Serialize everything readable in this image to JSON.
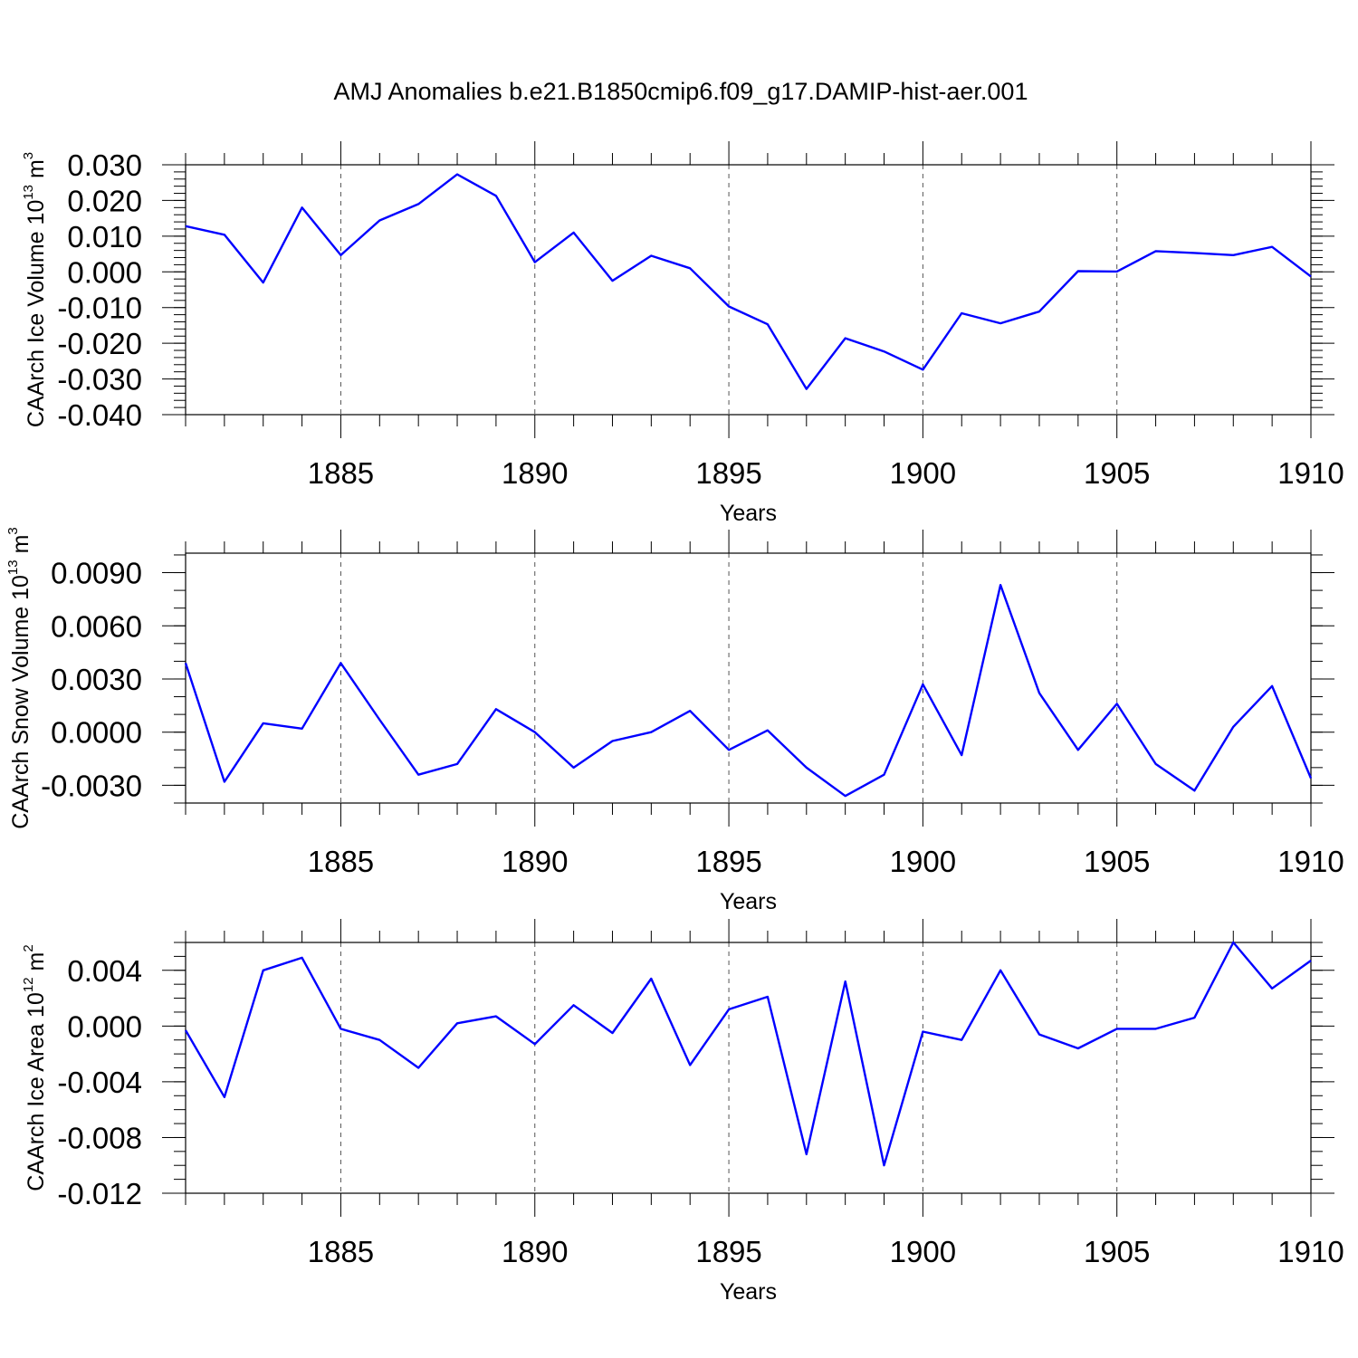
{
  "figure": {
    "title": "AMJ Anomalies b.e21.B1850cmip6.f09_g17.DAMIP-hist-aer.001"
  },
  "colors": {
    "series": "#0000ff",
    "axis": "#000000",
    "grid": "#555555"
  },
  "chart_data": [
    {
      "type": "line",
      "ylabel": "CAArch Ice Volume 10",
      "ylabel_exp": "13",
      "ylabel_unit": " m",
      "ylabel_unit_exp": "3",
      "xlabel": "Years",
      "xlim": [
        1881,
        1910
      ],
      "ylim": [
        -0.04,
        0.03
      ],
      "xticks": [
        1885,
        1890,
        1895,
        1900,
        1905,
        1910
      ],
      "yticks": [
        -0.04,
        -0.03,
        -0.02,
        -0.01,
        0.0,
        0.01,
        0.02,
        0.03
      ],
      "ytick_labels": [
        "-0.040",
        "-0.030",
        "-0.020",
        "-0.010",
        "0.000",
        "0.010",
        "0.020",
        "0.030"
      ],
      "y_minor_step": 0.002,
      "grid": "vertical dashed at major x ticks",
      "x": [
        1881,
        1882,
        1883,
        1884,
        1885,
        1886,
        1887,
        1888,
        1889,
        1890,
        1891,
        1892,
        1893,
        1894,
        1895,
        1896,
        1897,
        1898,
        1899,
        1900,
        1901,
        1902,
        1903,
        1904,
        1905,
        1906,
        1907,
        1908,
        1909,
        1910
      ],
      "series": [
        {
          "values": [
            0.0128,
            0.0104,
            -0.003,
            0.018,
            0.0047,
            0.0144,
            0.019,
            0.0273,
            0.0213,
            0.0027,
            0.011,
            -0.0025,
            0.0045,
            0.001,
            -0.0097,
            -0.0147,
            -0.0328,
            -0.0186,
            -0.0223,
            -0.0274,
            -0.0116,
            -0.0144,
            -0.0111,
            0.0002,
            0.0001,
            0.0058,
            0.0053,
            0.0047,
            0.007,
            -0.0013
          ]
        }
      ]
    },
    {
      "type": "line",
      "ylabel": "CAArch Snow Volume 10",
      "ylabel_exp": "13",
      "ylabel_unit": " m",
      "ylabel_unit_exp": "3",
      "xlabel": "Years",
      "xlim": [
        1881,
        1910
      ],
      "ylim": [
        -0.004,
        0.0101
      ],
      "xticks": [
        1885,
        1890,
        1895,
        1900,
        1905,
        1910
      ],
      "yticks": [
        -0.003,
        0.0,
        0.003,
        0.006,
        0.009
      ],
      "ytick_labels": [
        "-0.0030",
        "0.0000",
        "0.0030",
        "0.0060",
        "0.0090"
      ],
      "y_minor_step": 0.001,
      "grid": "vertical dashed at major x ticks",
      "x": [
        1881,
        1882,
        1883,
        1884,
        1885,
        1886,
        1887,
        1888,
        1889,
        1890,
        1891,
        1892,
        1893,
        1894,
        1895,
        1896,
        1897,
        1898,
        1899,
        1900,
        1901,
        1902,
        1903,
        1904,
        1905,
        1906,
        1907,
        1908,
        1909,
        1910
      ],
      "series": [
        {
          "values": [
            0.0039,
            -0.0028,
            0.0005,
            0.0002,
            0.0039,
            0.0007,
            -0.0024,
            -0.0018,
            0.0013,
            0.0,
            -0.002,
            -0.0005,
            0.0,
            0.0012,
            -0.001,
            0.0001,
            -0.002,
            -0.0036,
            -0.0024,
            0.0027,
            -0.0013,
            0.0083,
            0.0022,
            -0.001,
            0.0016,
            -0.0018,
            -0.0033,
            0.0003,
            0.0026,
            -0.0026
          ]
        }
      ]
    },
    {
      "type": "line",
      "ylabel": "CAArch Ice Area 10",
      "ylabel_exp": "12",
      "ylabel_unit": " m",
      "ylabel_unit_exp": "2",
      "xlabel": "Years",
      "xlim": [
        1881,
        1910
      ],
      "ylim": [
        -0.012,
        0.006
      ],
      "xticks": [
        1885,
        1890,
        1895,
        1900,
        1905,
        1910
      ],
      "yticks": [
        -0.012,
        -0.008,
        -0.004,
        0.0,
        0.004
      ],
      "ytick_labels": [
        "-0.012",
        "-0.008",
        "-0.004",
        "0.000",
        "0.004"
      ],
      "y_minor_step": 0.001,
      "grid": "vertical dashed at major x ticks",
      "x": [
        1881,
        1882,
        1883,
        1884,
        1885,
        1886,
        1887,
        1888,
        1889,
        1890,
        1891,
        1892,
        1893,
        1894,
        1895,
        1896,
        1897,
        1898,
        1899,
        1900,
        1901,
        1902,
        1903,
        1904,
        1905,
        1906,
        1907,
        1908,
        1909,
        1910
      ],
      "series": [
        {
          "values": [
            -0.0003,
            -0.0051,
            0.004,
            0.0049,
            -0.0002,
            -0.001,
            -0.003,
            0.0002,
            0.0007,
            -0.0013,
            0.0015,
            -0.0005,
            0.0034,
            -0.0028,
            0.0012,
            0.0021,
            -0.0092,
            0.0032,
            -0.01,
            -0.0004,
            -0.001,
            0.004,
            -0.0006,
            -0.0016,
            -0.0002,
            -0.0002,
            0.0006,
            0.006,
            0.0027,
            0.0047
          ]
        }
      ]
    }
  ]
}
